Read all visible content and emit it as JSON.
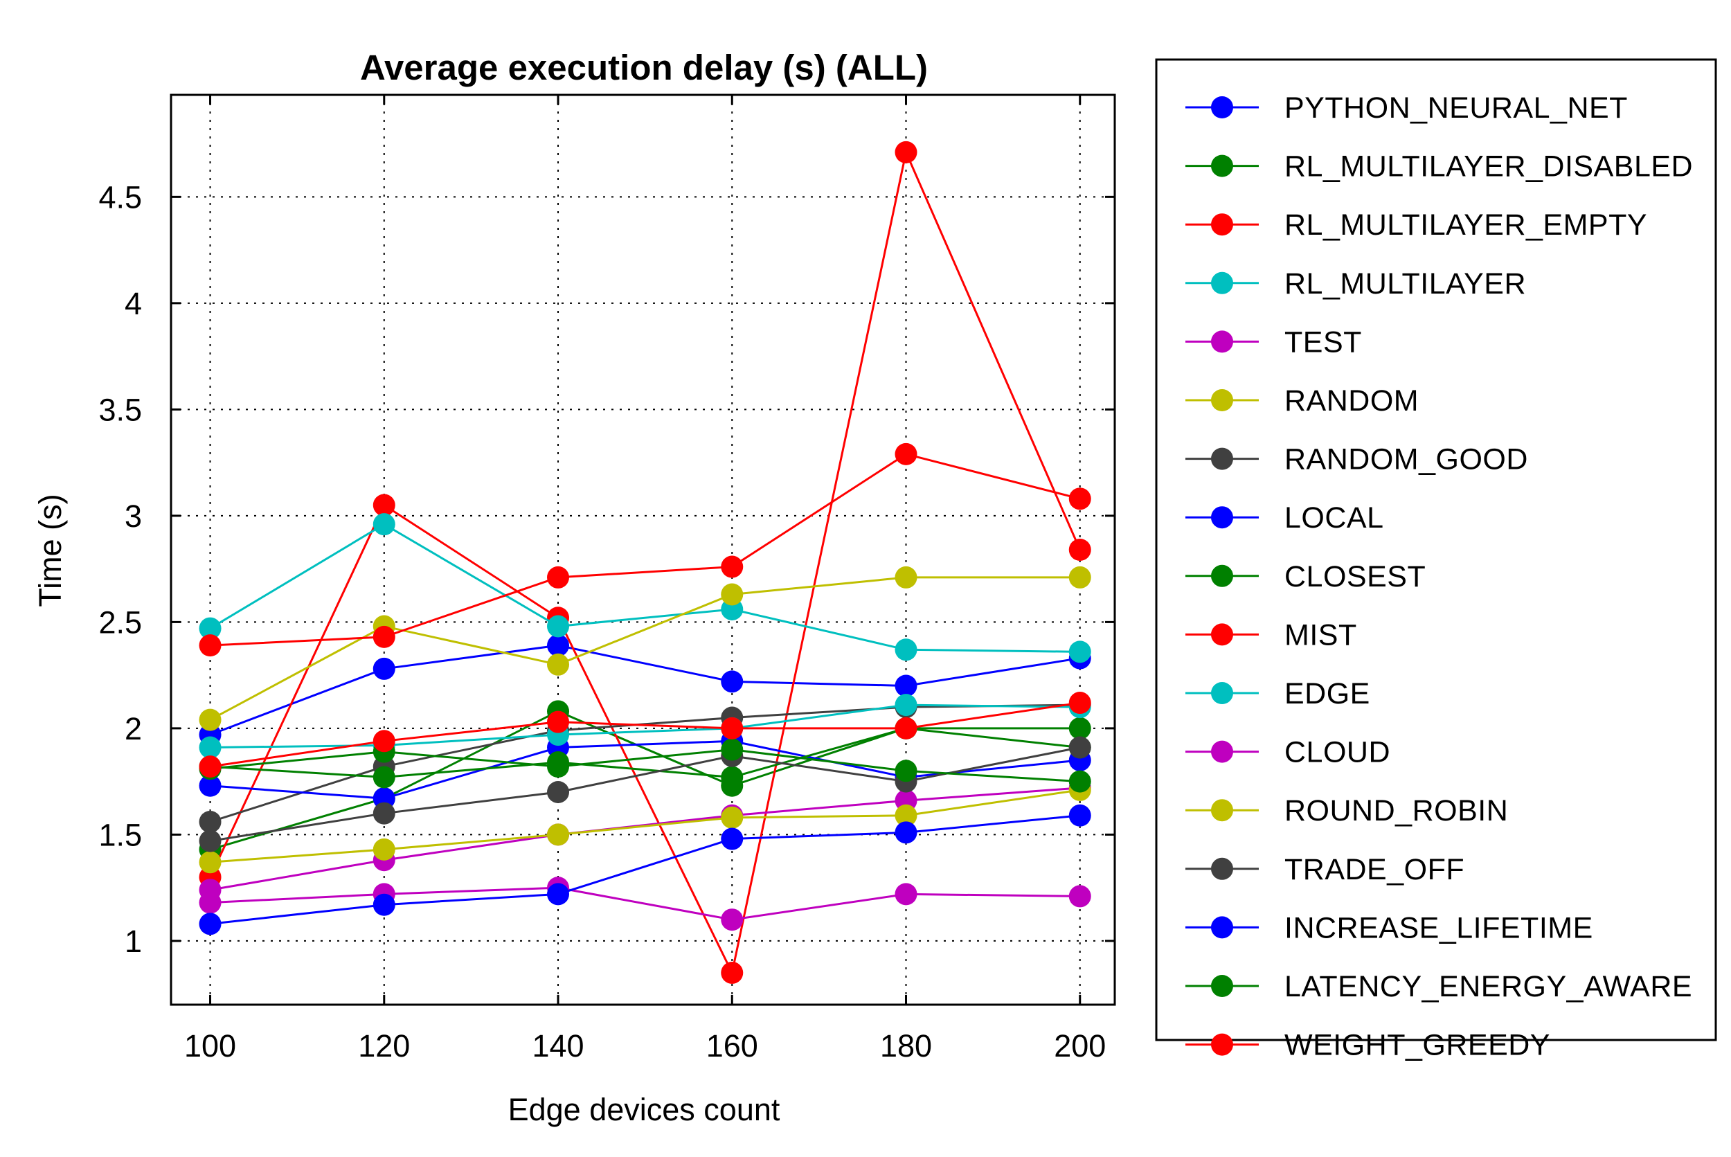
{
  "chart_data": {
    "type": "line",
    "title": "Average execution delay (s) (ALL)",
    "xlabel": "Edge devices count",
    "ylabel": "Time (s)",
    "x": [
      100,
      120,
      140,
      160,
      180,
      200
    ],
    "x_ticks": [
      "100",
      "120",
      "140",
      "160",
      "180",
      "200"
    ],
    "y_ticks": [
      {
        "value": 1,
        "label": "1"
      },
      {
        "value": 1.5,
        "label": "1.5"
      },
      {
        "value": 2,
        "label": "2"
      },
      {
        "value": 2.5,
        "label": "2.5"
      },
      {
        "value": 3,
        "label": "3"
      },
      {
        "value": 3.5,
        "label": "3.5"
      },
      {
        "value": 4,
        "label": "4"
      },
      {
        "value": 4.5,
        "label": "4.5"
      }
    ],
    "xlim": [
      95.5,
      204
    ],
    "ylim": [
      0.7,
      4.98
    ],
    "grid": true,
    "legend_position": "right-outside",
    "series": [
      {
        "name": "PYTHON_NEURAL_NET",
        "color": "#0000ff",
        "values": [
          1.97,
          2.28,
          2.39,
          2.22,
          2.2,
          2.33
        ]
      },
      {
        "name": "RL_MULTILAYER_DISABLED",
        "color": "#008000",
        "values": [
          1.43,
          1.67,
          2.08,
          1.73,
          2.0,
          2.0
        ]
      },
      {
        "name": "RL_MULTILAYER_EMPTY",
        "color": "#ff0000",
        "values": [
          1.3,
          3.05,
          2.52,
          0.85,
          4.71,
          2.84
        ]
      },
      {
        "name": "RL_MULTILAYER",
        "color": "#00bfbf",
        "values": [
          2.47,
          2.96,
          2.48,
          2.56,
          2.37,
          2.36
        ]
      },
      {
        "name": "TEST",
        "color": "#bf00bf",
        "values": [
          1.24,
          1.38,
          1.5,
          1.59,
          1.66,
          1.72
        ]
      },
      {
        "name": "RANDOM",
        "color": "#bfbf00",
        "values": [
          2.04,
          2.48,
          2.3,
          2.63,
          2.71,
          2.71
        ]
      },
      {
        "name": "RANDOM_GOOD",
        "color": "#404040",
        "values": [
          1.56,
          1.82,
          1.99,
          2.05,
          2.1,
          2.11
        ]
      },
      {
        "name": "LOCAL",
        "color": "#0000ff",
        "values": [
          1.73,
          1.67,
          1.91,
          1.94,
          1.77,
          1.85
        ]
      },
      {
        "name": "CLOSEST",
        "color": "#008000",
        "values": [
          1.82,
          1.77,
          1.84,
          1.77,
          2.0,
          1.91
        ]
      },
      {
        "name": "MIST",
        "color": "#ff0000",
        "values": [
          2.39,
          2.43,
          2.71,
          2.76,
          3.29,
          3.08
        ]
      },
      {
        "name": "EDGE",
        "color": "#00bfbf",
        "values": [
          1.91,
          1.92,
          1.97,
          2.0,
          2.11,
          2.1
        ]
      },
      {
        "name": "CLOUD",
        "color": "#bf00bf",
        "values": [
          1.18,
          1.22,
          1.25,
          1.1,
          1.22,
          1.21
        ]
      },
      {
        "name": "ROUND_ROBIN",
        "color": "#bfbf00",
        "values": [
          1.37,
          1.43,
          1.5,
          1.58,
          1.59,
          1.71
        ]
      },
      {
        "name": "TRADE_OFF",
        "color": "#404040",
        "values": [
          1.47,
          1.6,
          1.7,
          1.87,
          1.75,
          1.91
        ]
      },
      {
        "name": "INCREASE_LIFETIME",
        "color": "#0000ff",
        "values": [
          1.08,
          1.17,
          1.22,
          1.48,
          1.51,
          1.59
        ]
      },
      {
        "name": "LATENCY_ENERGY_AWARE",
        "color": "#008000",
        "values": [
          1.81,
          1.89,
          1.82,
          1.9,
          1.8,
          1.75
        ]
      },
      {
        "name": "WEIGHT_GREEDY",
        "color": "#ff0000",
        "values": [
          1.82,
          1.94,
          2.03,
          2.0,
          2.0,
          2.12
        ]
      }
    ]
  }
}
